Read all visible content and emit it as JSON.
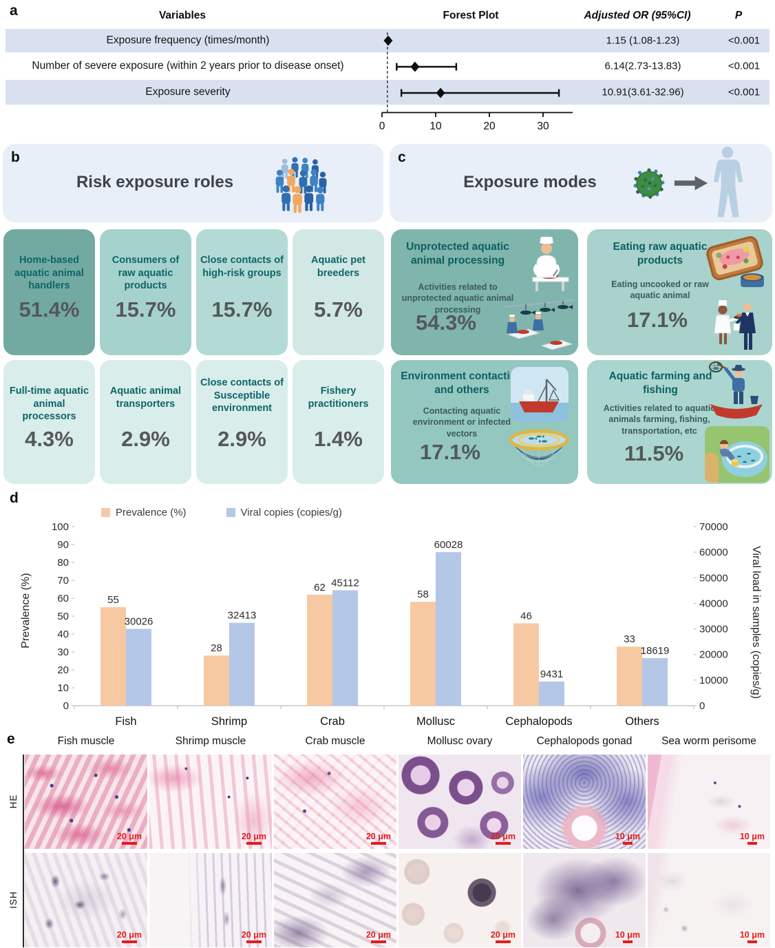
{
  "figure": {
    "panel_labels": {
      "a": "a",
      "b": "b",
      "c": "c",
      "d": "d",
      "e": "e"
    }
  },
  "colors": {
    "table_band": "#d9e1f1",
    "section_header": "#e9eff8",
    "accent_teal_dark": "#0e6064",
    "percent_text": "#55585a",
    "scale_bar_red": "#e31c1c",
    "prevalence_bar": "#f6c9a3",
    "viral_bar": "#b4c7e7"
  },
  "panels": {
    "a": {
      "columns": {
        "variables": "Variables",
        "forest": "Forest Plot",
        "or": "Adjusted OR (95%CI)",
        "p": "P"
      }
    },
    "b": {
      "title": "Risk exposure roles",
      "icon": "people-group-icon",
      "cards": [
        {
          "title": "Home-based aquatic animal handlers",
          "value": "51.4%",
          "color": "#72aaa2"
        },
        {
          "title": "Consumers of raw aquatic products",
          "value": "15.7%",
          "color": "#a6d2cd"
        },
        {
          "title": "Close contacts of high-risk groups",
          "value": "15.7%",
          "color": "#b4dad5"
        },
        {
          "title": "Aquatic pet breeders",
          "value": "5.7%",
          "color": "#d2e8e5"
        },
        {
          "title": "Full-time aquatic animal processors",
          "value": "4.3%",
          "color": "#d9edeb"
        },
        {
          "title": "Aquatic animal transporters",
          "value": "2.9%",
          "color": "#d9edeb"
        },
        {
          "title": "Close contacts of Susceptible environment",
          "value": "2.9%",
          "color": "#d9edeb"
        },
        {
          "title": "Fishery practitioners",
          "value": "1.4%",
          "color": "#d9edeb"
        }
      ]
    },
    "c": {
      "title": "Exposure modes",
      "icons": [
        "virus-icon",
        "arrow-icon",
        "human-silhouette-icon"
      ],
      "cards": [
        {
          "title": "Unprotected aquatic animal processing",
          "subtitle": "Activities related to unprotected aquatic animal processing",
          "value": "54.3%",
          "color": "#7fb5ac",
          "illustrations": [
            "chef-cutting-illustration",
            "fish-processing-line-illustration"
          ]
        },
        {
          "title": "Eating raw aquatic products",
          "subtitle": "Eating uncooked or raw aquatic animal",
          "value": "17.1%",
          "color": "#a8d2cb",
          "illustrations": [
            "raw-seafood-platter-illustration",
            "chef-and-waiter-illustration"
          ]
        },
        {
          "title": "Environment contacting and others",
          "subtitle": "Contacting aquatic environment or infected vectors",
          "value": "17.1%",
          "color": "#93c7c0",
          "illustrations": [
            "fishing-vessel-illustration",
            "aquaculture-cage-illustration"
          ]
        },
        {
          "title": "Aquatic farming and fishing",
          "subtitle": "Activities related to aquatic animals farming, fishing, transportation, etc",
          "value": "11.5%",
          "color": "#abd6d0",
          "illustrations": [
            "fisherman-boat-illustration",
            "pond-feeding-illustration"
          ]
        }
      ]
    },
    "e": {
      "row_labels": [
        "HE",
        "ISH"
      ],
      "columns": [
        "Fish muscle",
        "Shrimp muscle",
        "Crab muscle",
        "Mollusc ovary",
        "Cephalopods gonad",
        "Sea worm perisome"
      ],
      "scale_bars": [
        "20 μm",
        "20 μm",
        "20 μm",
        "20 μm",
        "10 μm",
        "10 μm"
      ]
    }
  },
  "chart_data": [
    {
      "type": "forest",
      "title": "Forest Plot",
      "x_ticks": [
        0,
        10,
        20,
        30
      ],
      "x_max": 35,
      "reference_line": 1,
      "rows": [
        {
          "variable": "Exposure frequency (times/month)",
          "or": 1.15,
          "ci_low": 1.08,
          "ci_high": 1.23,
          "or_label": "1.15 (1.08-1.23)",
          "p": "<0.001"
        },
        {
          "variable": "Number of severe exposure (within 2 years prior to disease onset)",
          "or": 6.14,
          "ci_low": 2.73,
          "ci_high": 13.83,
          "or_label": "6.14(2.73-13.83)",
          "p": "<0.001"
        },
        {
          "variable": "Exposure severity",
          "or": 10.91,
          "ci_low": 3.61,
          "ci_high": 32.96,
          "or_label": "10.91(3.61-32.96)",
          "p": "<0.001"
        }
      ]
    },
    {
      "type": "bar",
      "categories": [
        "Fish",
        "Shrimp",
        "Crab",
        "Mollusc",
        "Cephalopods",
        "Others"
      ],
      "series": [
        {
          "name": "Prevalence (%)",
          "axis": "left",
          "color": "#f6c9a3",
          "values": [
            55,
            28,
            62,
            58,
            46,
            33
          ]
        },
        {
          "name": "Viral copies (copies/g)",
          "axis": "right",
          "color": "#b4c7e7",
          "values": [
            30026,
            32413,
            45112,
            60028,
            9431,
            18619
          ]
        }
      ],
      "left_axis": {
        "label": "Prevalence (%)",
        "min": 0,
        "max": 100,
        "step": 10
      },
      "right_axis": {
        "label": "Viral load in samples (copies/g)",
        "min": 0,
        "max": 70000,
        "step": 10000
      },
      "grid": false,
      "legend_position": "top"
    }
  ]
}
